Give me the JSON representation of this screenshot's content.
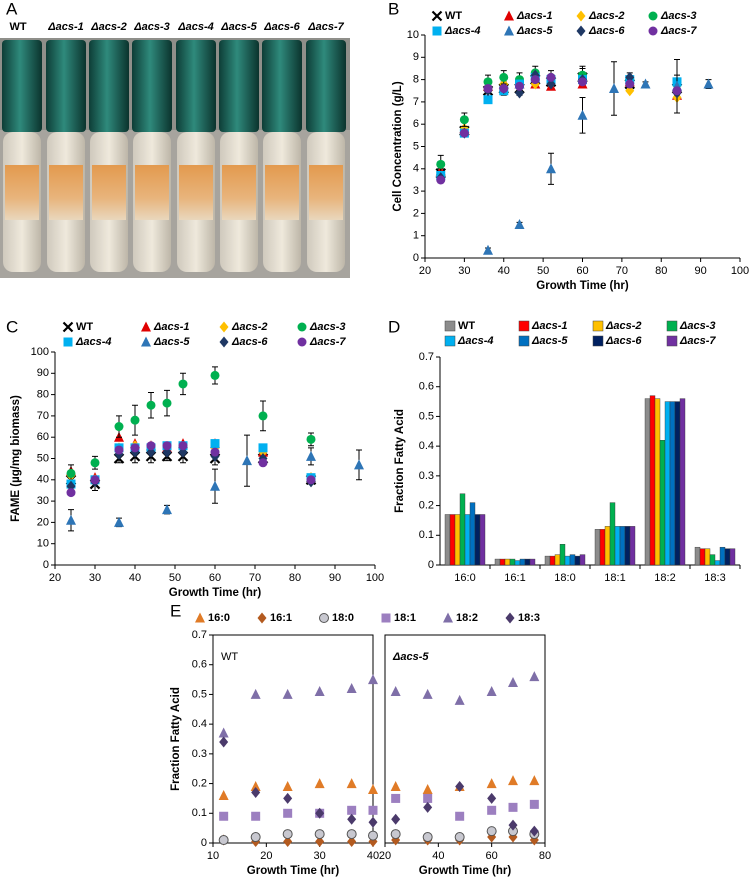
{
  "photo": {
    "panel_label": "A",
    "tube_labels": [
      "WT",
      "Δacs-1",
      "Δacs-2",
      "Δacs-3",
      "Δacs-4",
      "Δacs-5",
      "Δacs-6",
      "Δacs-7"
    ]
  },
  "chart_data": [
    {
      "type": "scatter",
      "panel_label": "B",
      "x_label": "Growth Time (hr)",
      "y_label": "Cell Concentration (g/L)",
      "xlim": [
        20,
        100
      ],
      "xticks": [
        20,
        30,
        40,
        50,
        60,
        70,
        80,
        90,
        100
      ],
      "ylim": [
        0,
        10
      ],
      "yticks": [
        0,
        1,
        2,
        3,
        4,
        5,
        6,
        7,
        8,
        9,
        10
      ],
      "x": [
        24,
        30,
        36,
        40,
        44,
        48,
        52,
        60,
        72,
        84
      ],
      "series": [
        {
          "name": "WT",
          "color": "#000000",
          "marker": "x",
          "values": [
            3.8,
            5.7,
            7.5,
            7.6,
            7.6,
            8.0,
            7.9,
            8.1,
            7.8,
            7.6
          ],
          "errors": [
            0.2,
            0.2,
            0.3,
            0.3,
            0.3,
            0.3,
            0.3,
            0.4,
            0.3,
            0.3
          ]
        },
        {
          "name": "Δacs-1",
          "color": "#e00000",
          "marker": "triangle",
          "values": [
            3.9,
            5.8,
            7.7,
            7.8,
            7.8,
            7.8,
            7.7,
            7.8,
            7.9,
            7.3
          ]
        },
        {
          "name": "Δacs-2",
          "color": "#ffc000",
          "marker": "diamond",
          "values": [
            3.7,
            5.8,
            7.6,
            7.8,
            7.9,
            7.8,
            7.9,
            8.0,
            7.5,
            7.2
          ]
        },
        {
          "name": "Δacs-3",
          "color": "#00b050",
          "marker": "circle",
          "values": [
            4.2,
            6.2,
            7.9,
            8.1,
            8.0,
            8.3,
            8.1,
            8.2,
            8.0,
            7.8
          ],
          "errors": [
            0.4,
            0.3,
            0.3,
            0.3,
            0.3,
            0.3,
            0.3,
            0.4,
            0.3,
            0.4
          ]
        },
        {
          "name": "Δacs-4",
          "color": "#00b0f0",
          "marker": "square",
          "values": [
            3.7,
            5.6,
            7.1,
            7.5,
            7.8,
            8.1,
            8.0,
            8.0,
            8.0,
            7.9
          ]
        },
        {
          "name": "Δacs-5",
          "color": "#2e75b6",
          "marker": "triangle",
          "x": [
            36,
            44,
            52,
            60,
            68,
            76,
            84,
            92
          ],
          "values": [
            0.35,
            1.5,
            4.0,
            6.4,
            7.6,
            7.8,
            7.7,
            7.8
          ],
          "errors": [
            0.1,
            0.1,
            0.7,
            0.8,
            1.2,
            0.1,
            1.2,
            0.2
          ]
        },
        {
          "name": "Δacs-6",
          "color": "#1f3864",
          "marker": "diamond",
          "values": [
            3.6,
            5.6,
            7.5,
            7.6,
            7.4,
            8.2,
            7.8,
            8.0,
            8.1,
            7.4
          ]
        },
        {
          "name": "Δacs-7",
          "color": "#7030a0",
          "marker": "circle",
          "values": [
            3.5,
            5.6,
            7.6,
            7.6,
            7.7,
            8.0,
            8.1,
            7.9,
            7.8,
            7.5
          ]
        }
      ]
    },
    {
      "type": "scatter",
      "panel_label": "C",
      "x_label": "Growth Time (hr)",
      "y_label": "FAME (µg/mg biomass)",
      "xlim": [
        20,
        100
      ],
      "xticks": [
        20,
        30,
        40,
        50,
        60,
        70,
        80,
        90,
        100
      ],
      "ylim": [
        0,
        100
      ],
      "yticks": [
        0,
        10,
        20,
        30,
        40,
        50,
        60,
        70,
        80,
        90,
        100
      ],
      "x": [
        24,
        30,
        36,
        40,
        44,
        48,
        52,
        60,
        72,
        84
      ],
      "series": [
        {
          "name": "WT",
          "color": "#000000",
          "marker": "x",
          "values": [
            40,
            38,
            50,
            51,
            51,
            51,
            51,
            50,
            50,
            40
          ],
          "errors": [
            3,
            3,
            2,
            3,
            3,
            2,
            3,
            3,
            3,
            2
          ]
        },
        {
          "name": "Δacs-1",
          "color": "#e00000",
          "marker": "triangle",
          "values": [
            44,
            41,
            60,
            57,
            56,
            55,
            57,
            57,
            53,
            41
          ]
        },
        {
          "name": "Δacs-2",
          "color": "#ffc000",
          "marker": "diamond",
          "values": [
            42,
            40,
            55,
            56,
            55,
            55,
            55,
            55,
            53,
            41
          ]
        },
        {
          "name": "Δacs-3",
          "color": "#00b050",
          "marker": "circle",
          "values": [
            43,
            48,
            65,
            68,
            75,
            76,
            85,
            89,
            70,
            59
          ],
          "errors": [
            4,
            3,
            5,
            7,
            6,
            6,
            5,
            4,
            7,
            3
          ]
        },
        {
          "name": "Δacs-4",
          "color": "#00b0f0",
          "marker": "square",
          "values": [
            38,
            40,
            55,
            55,
            55,
            56,
            56,
            57,
            55,
            41
          ]
        },
        {
          "name": "Δacs-5",
          "color": "#2e75b6",
          "marker": "triangle",
          "x": [
            24,
            36,
            48,
            60,
            68,
            84,
            96
          ],
          "values": [
            21,
            20,
            26,
            37,
            49,
            51,
            47
          ],
          "errors": [
            5,
            2,
            2,
            8,
            12,
            4,
            7
          ]
        },
        {
          "name": "Δacs-6",
          "color": "#1f3864",
          "marker": "diamond",
          "values": [
            37,
            39,
            52,
            53,
            53,
            53,
            53,
            51,
            50,
            39
          ]
        },
        {
          "name": "Δacs-7",
          "color": "#7030a0",
          "marker": "circle",
          "values": [
            34,
            40,
            54,
            55,
            56,
            56,
            56,
            53,
            48,
            40
          ]
        }
      ]
    },
    {
      "type": "bar",
      "panel_label": "D",
      "y_label": "Fraction Fatty Acid",
      "categories": [
        "16:0",
        "16:1",
        "18:0",
        "18:1",
        "18:2",
        "18:3"
      ],
      "ylim": [
        0,
        0.7
      ],
      "yticks": [
        0,
        0.1,
        0.2,
        0.3,
        0.4,
        0.5,
        0.6,
        0.7
      ],
      "series": [
        {
          "name": "WT",
          "color": "#8c8c8c",
          "values": [
            0.17,
            0.02,
            0.03,
            0.12,
            0.56,
            0.06
          ]
        },
        {
          "name": "Δacs-1",
          "color": "#ff0000",
          "values": [
            0.17,
            0.02,
            0.03,
            0.12,
            0.57,
            0.055
          ]
        },
        {
          "name": "Δacs-2",
          "color": "#ffc000",
          "values": [
            0.17,
            0.02,
            0.035,
            0.13,
            0.56,
            0.055
          ]
        },
        {
          "name": "Δacs-3",
          "color": "#00b050",
          "values": [
            0.24,
            0.02,
            0.07,
            0.21,
            0.42,
            0.035
          ]
        },
        {
          "name": "Δacs-4",
          "color": "#00b0f0",
          "values": [
            0.17,
            0.015,
            0.03,
            0.13,
            0.55,
            0.015
          ]
        },
        {
          "name": "Δacs-5",
          "color": "#0070c0",
          "values": [
            0.21,
            0.02,
            0.035,
            0.13,
            0.55,
            0.06
          ]
        },
        {
          "name": "Δacs-6",
          "color": "#002060",
          "values": [
            0.17,
            0.02,
            0.03,
            0.13,
            0.55,
            0.055
          ]
        },
        {
          "name": "Δacs-7",
          "color": "#7030a0",
          "values": [
            0.17,
            0.02,
            0.035,
            0.13,
            0.56,
            0.055
          ]
        }
      ]
    },
    {
      "type": "scatter",
      "panel_label": "E",
      "annotation": "WT",
      "x_label": "Growth Time (hr)",
      "y_label": "Fraction Fatty Acid",
      "xlim": [
        10,
        40
      ],
      "xticks": [
        10,
        20,
        30,
        40
      ],
      "ylim": [
        0,
        0.7
      ],
      "yticks": [
        0,
        0.1,
        0.2,
        0.3,
        0.4,
        0.5,
        0.6,
        0.7
      ],
      "x": [
        12,
        18,
        24,
        30,
        36,
        40
      ],
      "series": [
        {
          "name": "16:0",
          "color": "#e07b27",
          "marker": "triangle",
          "values": [
            0.16,
            0.19,
            0.19,
            0.2,
            0.2,
            0.18
          ]
        },
        {
          "name": "16:1",
          "color": "#b35a1f",
          "marker": "diamond",
          "values": [
            0.01,
            0.005,
            0.005,
            0.005,
            0.005,
            0.005
          ]
        },
        {
          "name": "18:0",
          "color": "#c8c8d0",
          "marker": "circle",
          "values": [
            0.01,
            0.02,
            0.03,
            0.03,
            0.03,
            0.025
          ]
        },
        {
          "name": "18:1",
          "color": "#9c7fc0",
          "marker": "square",
          "values": [
            0.09,
            0.09,
            0.1,
            0.1,
            0.11,
            0.11
          ]
        },
        {
          "name": "18:2",
          "color": "#7f6fa8",
          "marker": "triangle",
          "values": [
            0.37,
            0.5,
            0.5,
            0.51,
            0.52,
            0.55
          ]
        },
        {
          "name": "18:3",
          "color": "#4b3a6b",
          "marker": "diamond",
          "values": [
            0.34,
            0.17,
            0.15,
            0.1,
            0.08,
            0.07
          ]
        }
      ]
    },
    {
      "type": "scatter",
      "annotation": "Δacs-5",
      "x_label": "Growth Time (hr)",
      "xlim": [
        20,
        80
      ],
      "xticks": [
        20,
        40,
        60,
        80
      ],
      "ylim": [
        0,
        0.7
      ],
      "x": [
        24,
        36,
        48,
        60,
        68,
        76
      ],
      "series": [
        {
          "values": [
            0.19,
            0.18,
            0.19,
            0.2,
            0.21,
            0.21
          ]
        },
        {
          "values": [
            0.01,
            0.01,
            0.01,
            0.02,
            0.02,
            0.01
          ]
        },
        {
          "values": [
            0.03,
            0.02,
            0.02,
            0.04,
            0.04,
            0.03
          ]
        },
        {
          "values": [
            0.15,
            0.15,
            0.09,
            0.11,
            0.12,
            0.13
          ]
        },
        {
          "values": [
            0.51,
            0.5,
            0.48,
            0.51,
            0.54,
            0.56
          ]
        },
        {
          "values": [
            0.08,
            0.12,
            0.19,
            0.15,
            0.06,
            0.04
          ]
        }
      ]
    }
  ]
}
